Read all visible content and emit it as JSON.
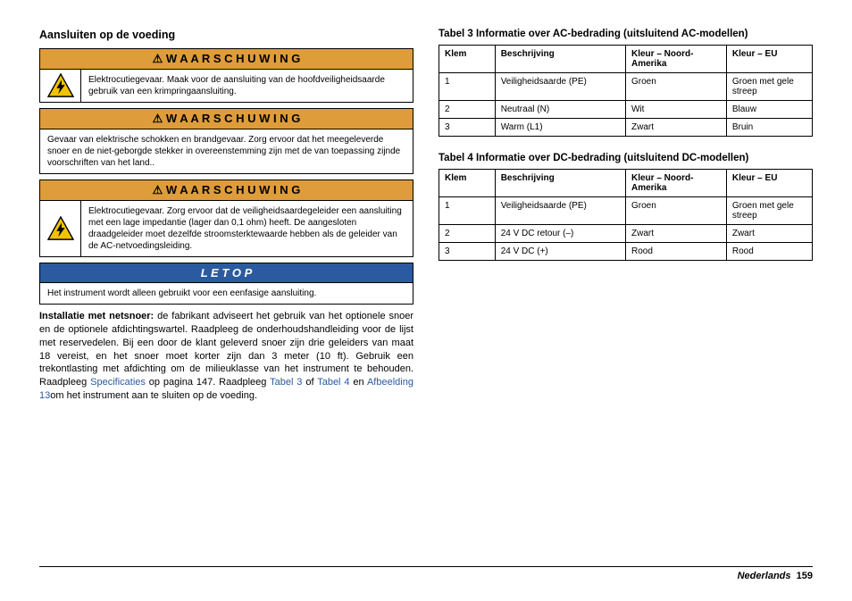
{
  "left": {
    "heading": "Aansluiten op de voeding",
    "warn_label": "W A A R S C H U W I N G",
    "notice_label": "L E T   O P",
    "w1": "Elektrocutiegevaar. Maak voor de aansluiting van de hoofdveiligheidsaarde gebruik van een krimpringaansluiting.",
    "w2": "Gevaar van elektrische schokken en brandgevaar. Zorg ervoor dat het meegeleverde snoer en de niet-geborgde stekker in overeenstemming zijn met de van toepassing zijnde voorschriften van het land..",
    "w3": "Elektrocutiegevaar. Zorg ervoor dat de veiligheidsaardegeleider een aansluiting met een lage impedantie (lager dan 0,1 ohm) heeft. De aangesloten draadgeleider moet dezelfde stroomsterktewaarde hebben als de geleider van de AC-netvoedingsleiding.",
    "notice": "Het instrument wordt alleen gebruikt voor een eenfasige aansluiting.",
    "p_strong": "Installatie met netsnoer:",
    "p_a": " de fabrikant adviseert het gebruik van het optionele snoer en de optionele afdichtingswartel. Raadpleeg de onderhoudshandleiding voor de lijst met reservedelen. Bij een door de klant geleverd snoer zijn drie geleiders van maat 18 vereist, en het snoer moet korter zijn dan 3 meter (10 ft). Gebruik een trekontlasting met afdichting om de milieuklasse van het instrument te behouden. Raadpleeg ",
    "link1": "Specificaties",
    "p_b": " op pagina 147. Raadpleeg ",
    "link2": "Tabel 3",
    "p_c": " of ",
    "link3": "Tabel 4",
    "p_d": " en ",
    "link4": "Afbeelding 13",
    "p_e": "om het instrument aan te sluiten op de voeding."
  },
  "right": {
    "t3_caption": "Tabel 3  Informatie over AC-bedrading (uitsluitend AC-modellen)",
    "t4_caption": "Tabel 4  Informatie over DC-bedrading (uitsluitend DC-modellen)",
    "headers": {
      "c1": "Klem",
      "c2": "Beschrijving",
      "c3": "Kleur – Noord-Amerika",
      "c4": "Kleur – EU"
    },
    "t3": [
      {
        "a": "1",
        "b": "Veiligheidsaarde (PE)",
        "c": "Groen",
        "d": "Groen met gele streep"
      },
      {
        "a": "2",
        "b": "Neutraal (N)",
        "c": "Wit",
        "d": "Blauw"
      },
      {
        "a": "3",
        "b": "Warm (L1)",
        "c": "Zwart",
        "d": "Bruin"
      }
    ],
    "t4": [
      {
        "a": "1",
        "b": "Veiligheidsaarde (PE)",
        "c": "Groen",
        "d": "Groen met gele streep"
      },
      {
        "a": "2",
        "b": "24 V DC retour (–)",
        "c": "Zwart",
        "d": "Zwart"
      },
      {
        "a": "3",
        "b": "24 V DC (+)",
        "c": "Rood",
        "d": "Rood"
      }
    ]
  },
  "footer": {
    "lang": "Nederlands",
    "page": "159"
  },
  "colors": {
    "warn_bg": "#df9c3b",
    "notice_bg": "#2c5aa0",
    "link": "#2c5aa0"
  }
}
